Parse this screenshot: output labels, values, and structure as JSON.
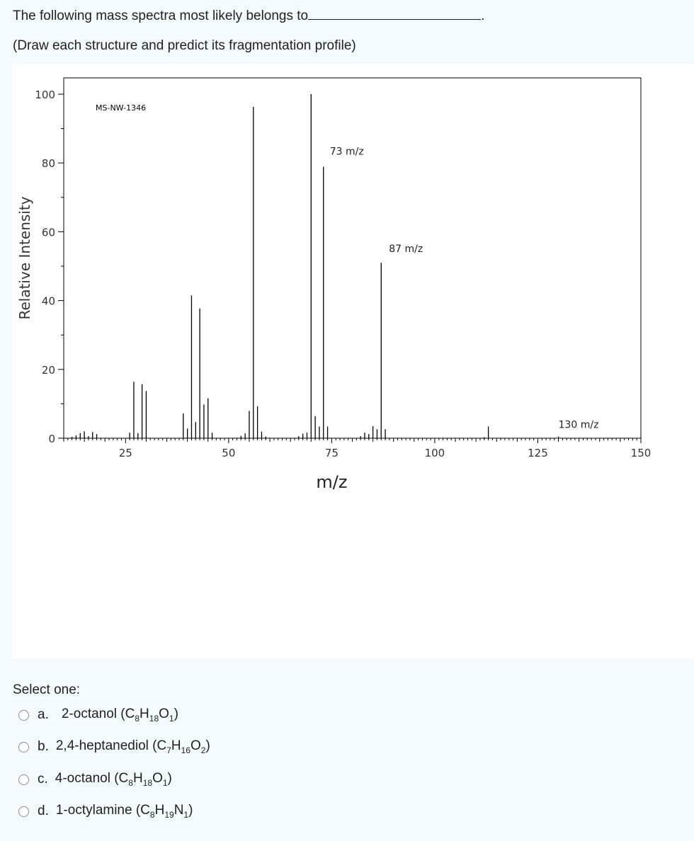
{
  "question": {
    "prompt": "The following mass spectra most likely belongs to",
    "blank_end": ".",
    "instruction": "(Draw each structure and predict its fragmentation profile)"
  },
  "chart_data": {
    "type": "bar",
    "sample_id": "MS-NW-1346",
    "xlabel": "m/z",
    "ylabel": "Relative Intensity",
    "xlim": [
      10,
      150
    ],
    "ylim": [
      0,
      100
    ],
    "x_ticks": [
      25,
      50,
      75,
      100,
      125,
      150
    ],
    "y_ticks": [
      0,
      20,
      40,
      60,
      80,
      100
    ],
    "annotations": [
      {
        "text": "73 m/z",
        "mz": 73
      },
      {
        "text": "87 m/z",
        "mz": 87
      },
      {
        "text": "130 m/z",
        "mz": 130
      }
    ],
    "peaks": {
      "mz": [
        12,
        13,
        14,
        15,
        16,
        17,
        18,
        26,
        27,
        28,
        29,
        30,
        39,
        40,
        41,
        42,
        43,
        44,
        45,
        46,
        53,
        54,
        55,
        56,
        57,
        58,
        59,
        67,
        68,
        69,
        70,
        71,
        72,
        73,
        74,
        82,
        83,
        84,
        85,
        86,
        87,
        88,
        112,
        113,
        130
      ],
      "intensity": [
        0.4,
        0.8,
        1.5,
        2.0,
        0.6,
        1.8,
        1.2,
        1.6,
        16.4,
        1.5,
        15.7,
        13.7,
        7.2,
        2.8,
        41.5,
        4.7,
        37.7,
        9.8,
        11.6,
        1.6,
        0.7,
        1.4,
        7.9,
        96.3,
        9.3,
        1.9,
        0.5,
        0.6,
        1.3,
        1.6,
        100,
        6.4,
        3.4,
        78.9,
        3.4,
        0.6,
        1.6,
        1.2,
        3.5,
        2.6,
        51.0,
        2.6,
        0.3,
        3.4,
        0.5
      ]
    }
  },
  "select_one": "Select one:",
  "options": [
    {
      "letter": "a.",
      "name": "2-octanol (C",
      "formula": [
        [
          "8",
          "H"
        ],
        [
          "18",
          "O"
        ],
        [
          "1",
          ")"
        ]
      ]
    },
    {
      "letter": "b.",
      "name": "2,4-heptanediol (C",
      "formula": [
        [
          "7",
          "H"
        ],
        [
          "16",
          "O"
        ],
        [
          "2",
          ")"
        ]
      ]
    },
    {
      "letter": "c.",
      "name": "4-octanol (C",
      "formula": [
        [
          "8",
          "H"
        ],
        [
          "18",
          "O"
        ],
        [
          "1",
          ")"
        ]
      ]
    },
    {
      "letter": "d.",
      "name": "1-octylamine (C",
      "formula": [
        [
          "8",
          "H"
        ],
        [
          "19",
          "N"
        ],
        [
          "1",
          ")"
        ]
      ]
    }
  ]
}
